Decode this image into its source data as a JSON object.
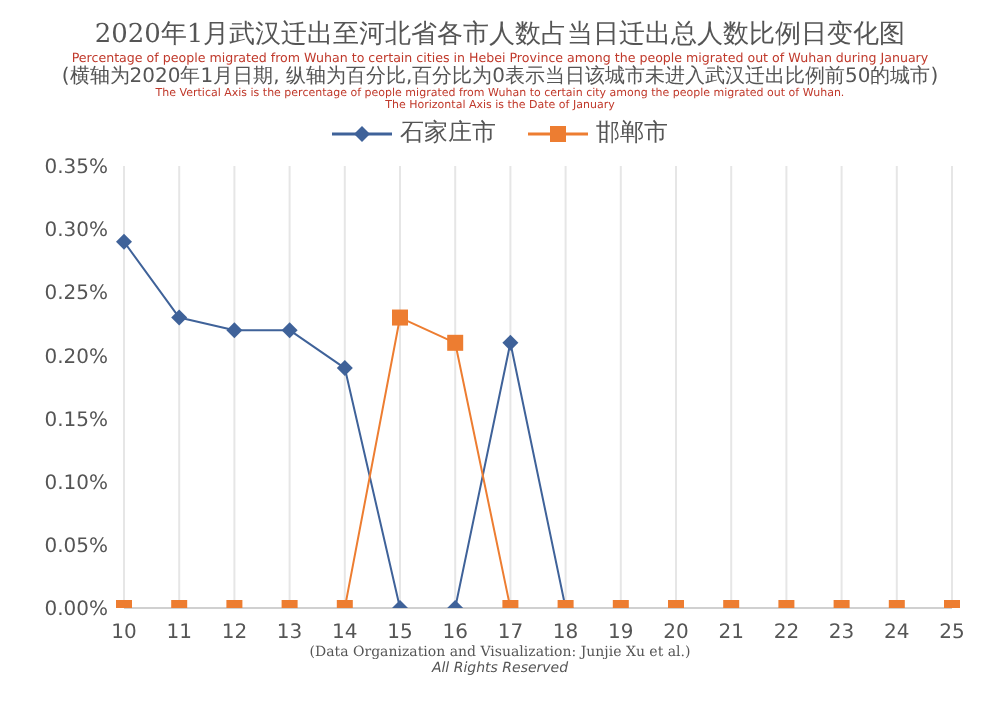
{
  "chart_data": {
    "type": "line",
    "title": "2020年1月武汉迁出至河北省各市人数占当日迁出总人数比例日变化图",
    "subtitle": "Percentage of people migrated from Wuhan to certain cities in Hebei Province among the people migrated out of Wuhan during January",
    "annotations": [
      "(横轴为2020年1月日期, 纵轴为百分比,百分比为0表示当日该城市未进入武汉迁出比例前50的城市)",
      "The Vertical Axis is the percentage of people migrated from Wuhan to certain city  among the people migrated out of Wuhan.",
      "The Horizontal Axis is the Date of January",
      "(Data Organization and Visualization: Junjie Xu et al.)",
      "All Rights Reserved"
    ],
    "categories": [
      "10",
      "11",
      "12",
      "13",
      "14",
      "15",
      "16",
      "17",
      "18",
      "19",
      "20",
      "21",
      "22",
      "23",
      "24",
      "25"
    ],
    "series": [
      {
        "name": "石家庄市",
        "color": "#3f6299",
        "marker": "diamond",
        "values": [
          0.29,
          0.23,
          0.22,
          0.22,
          0.19,
          0,
          0,
          0.21,
          0,
          null,
          null,
          null,
          null,
          null,
          null,
          null
        ]
      },
      {
        "name": "邯郸市",
        "color": "#ed7d31",
        "marker": "square",
        "values": [
          0,
          0,
          0,
          0,
          0,
          0.23,
          0.21,
          0,
          0,
          0,
          0,
          0,
          0,
          0,
          0,
          0
        ]
      }
    ],
    "ylim": [
      0,
      0.35
    ],
    "yticks": [
      {
        "value": 0,
        "label": "0.00%"
      },
      {
        "value": 0.05,
        "label": "0.05%"
      },
      {
        "value": 0.1,
        "label": "0.10%"
      },
      {
        "value": 0.15,
        "label": "0.15%"
      },
      {
        "value": 0.2,
        "label": "0.20%"
      },
      {
        "value": 0.25,
        "label": "0.25%"
      },
      {
        "value": 0.3,
        "label": "0.30%"
      },
      {
        "value": 0.35,
        "label": "0.35%"
      }
    ],
    "grid": "x",
    "legend": "top",
    "line_style": "solid"
  }
}
